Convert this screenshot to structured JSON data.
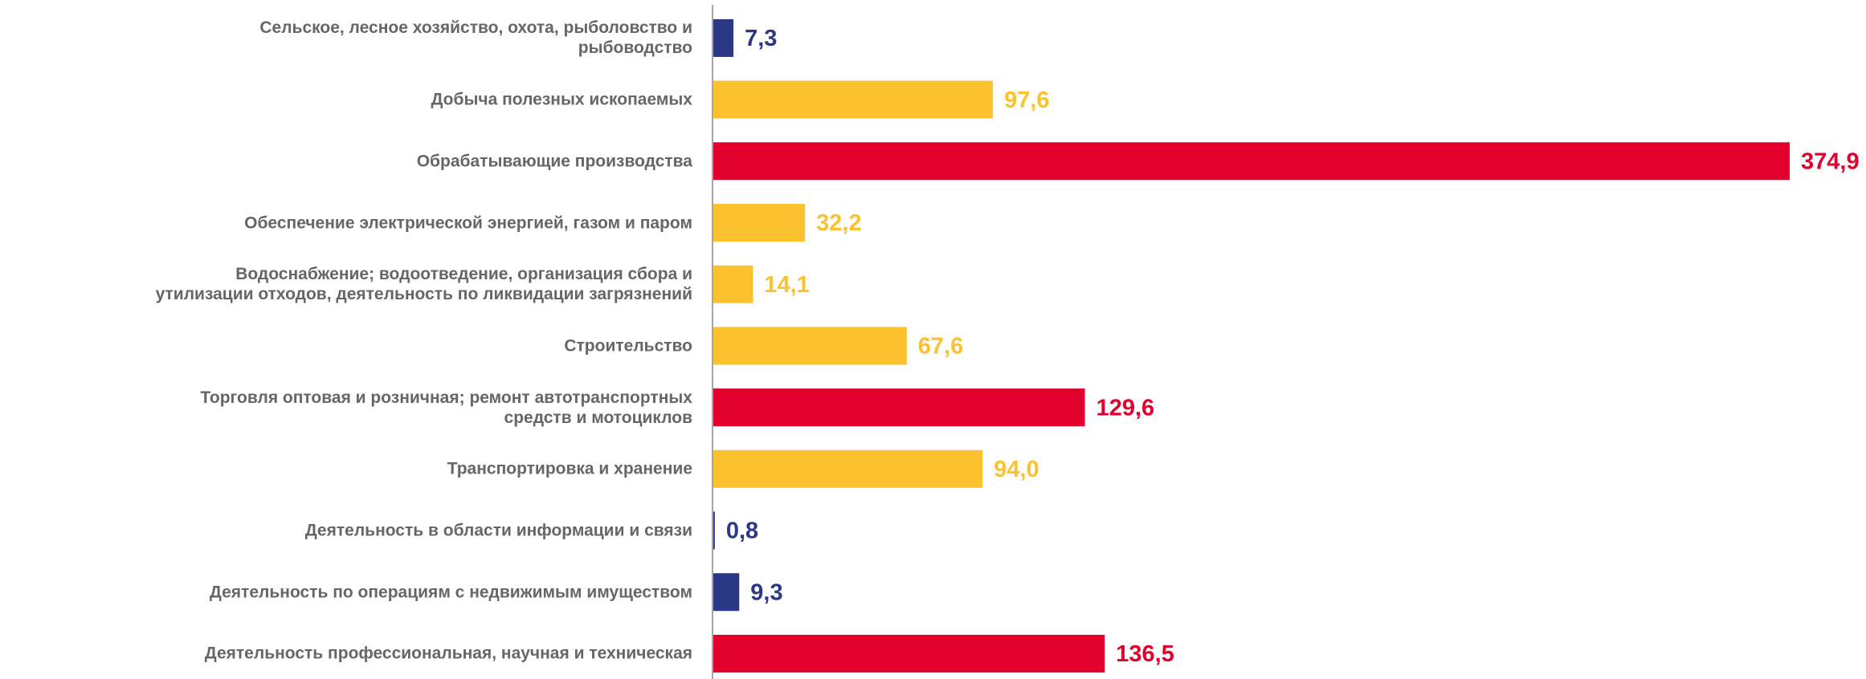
{
  "chart_data": {
    "type": "bar",
    "orientation": "horizontal",
    "categories": [
      "Сельское, лесное хозяйство, охота, рыболовство и\nрыбоводство",
      "Добыча полезных ископаемых",
      "Обрабатывающие производства",
      "Обеспечение электрической энергией, газом и паром",
      "Водоснабжение; водоотведение, организация сбора и\nутилизации отходов, деятельность по ликвидации загрязнений",
      "Строительство",
      "Торговля оптовая и розничная; ремонт автотранспортных\nсредств и мотоциклов",
      "Транспортировка и хранение",
      "Деятельность в области информации и связи",
      "Деятельность по операциям с недвижимым имуществом",
      "Деятельность профессиональная, научная и техническая"
    ],
    "values": [
      7.3,
      97.6,
      374.9,
      32.2,
      14.1,
      67.6,
      129.6,
      94.0,
      0.8,
      9.3,
      136.5
    ],
    "value_labels": [
      "7,3",
      "97,6",
      "374,9",
      "32,2",
      "14,1",
      "67,6",
      "129,6",
      "94,0",
      "0,8",
      "9,3",
      "136,5"
    ],
    "colors": [
      "#2b3886",
      "#fcc12e",
      "#e2002c",
      "#fcc12e",
      "#fcc12e",
      "#fcc12e",
      "#e2002c",
      "#fcc12e",
      "#2b3886",
      "#2b3886",
      "#e2002c"
    ]
  }
}
